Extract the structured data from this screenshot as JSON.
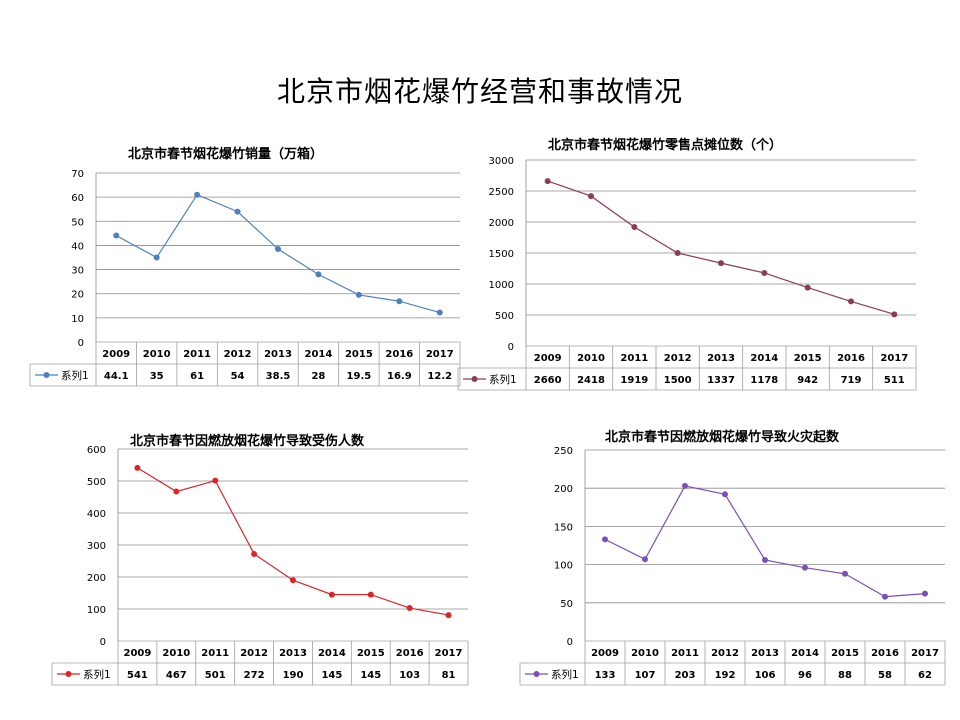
{
  "page": {
    "title": "北京市烟花爆竹经营和事故情况"
  },
  "chart_data": [
    {
      "type": "line",
      "title": "北京市春节烟花爆竹销量（万箱）",
      "categories": [
        "2009",
        "2010",
        "2011",
        "2012",
        "2013",
        "2014",
        "2015",
        "2016",
        "2017"
      ],
      "series": [
        {
          "name": "系列1",
          "values": [
            44.1,
            35,
            61,
            54,
            38.5,
            28,
            19.5,
            16.9,
            12.2
          ]
        }
      ],
      "ylim": [
        0,
        70
      ],
      "yticks": [
        0,
        10,
        20,
        30,
        40,
        50,
        60,
        70
      ],
      "color": "#4f81bd",
      "grid": true,
      "data_table": true
    },
    {
      "type": "line",
      "title": "北京市春节烟花爆竹零售点摊位数（个）",
      "categories": [
        "2009",
        "2010",
        "2011",
        "2012",
        "2013",
        "2014",
        "2015",
        "2016",
        "2017"
      ],
      "series": [
        {
          "name": "系列1",
          "values": [
            2660,
            2418,
            1919,
            1500,
            1337,
            1178,
            942,
            719,
            511
          ]
        }
      ],
      "ylim": [
        0,
        3000
      ],
      "yticks": [
        0,
        500,
        1000,
        1500,
        2000,
        2500,
        3000
      ],
      "color": "#8c3d52",
      "grid": true,
      "data_table": true
    },
    {
      "type": "line",
      "title": "北京市春节因燃放烟花爆竹导致受伤人数",
      "categories": [
        "2009",
        "2010",
        "2011",
        "2012",
        "2013",
        "2014",
        "2015",
        "2016",
        "2017"
      ],
      "series": [
        {
          "name": "系列1",
          "values": [
            541,
            467,
            501,
            272,
            190,
            145,
            145,
            103,
            81
          ]
        }
      ],
      "ylim": [
        0,
        600
      ],
      "yticks": [
        0,
        100,
        200,
        300,
        400,
        500,
        600
      ],
      "color": "#d9262c",
      "grid": true,
      "data_table": true
    },
    {
      "type": "line",
      "title": "北京市春节因燃放烟花爆竹导致火灾起数",
      "categories": [
        "2009",
        "2010",
        "2011",
        "2012",
        "2013",
        "2014",
        "2015",
        "2016",
        "2017"
      ],
      "series": [
        {
          "name": "系列1",
          "values": [
            133,
            107,
            203,
            192,
            106,
            96,
            88,
            58,
            62
          ]
        }
      ],
      "ylim": [
        0,
        250
      ],
      "yticks": [
        0,
        50,
        100,
        150,
        200,
        250
      ],
      "color": "#7b4fb5",
      "grid": true,
      "data_table": true
    }
  ]
}
